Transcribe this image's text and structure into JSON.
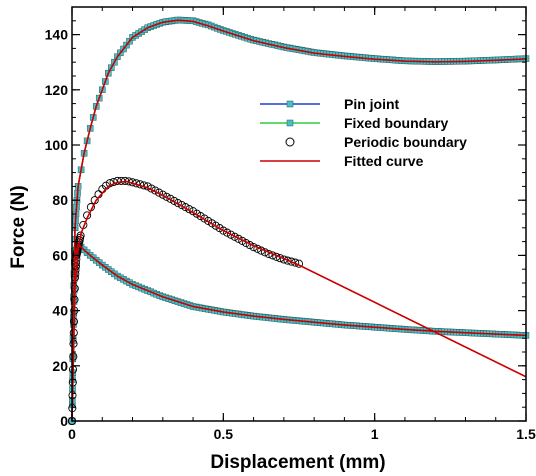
{
  "chart_data": {
    "type": "scatter",
    "xlabel": "Displacement (mm)",
    "ylabel": "Force (N)",
    "xlim": [
      0,
      1.5
    ],
    "ylim": [
      0,
      150
    ],
    "x_ticks": [
      {
        "value": 0,
        "label": "0"
      },
      {
        "value": 0.5,
        "label": "0.5"
      },
      {
        "value": 1,
        "label": "1"
      },
      {
        "value": 1.5,
        "label": "1.5"
      }
    ],
    "y_ticks": [
      {
        "value": 0,
        "label": "0"
      },
      {
        "value": 20,
        "label": "20"
      },
      {
        "value": 40,
        "label": "40"
      },
      {
        "value": 60,
        "label": "60"
      },
      {
        "value": 80,
        "label": "80"
      },
      {
        "value": 100,
        "label": "100"
      },
      {
        "value": 120,
        "label": "120"
      },
      {
        "value": 140,
        "label": "140"
      }
    ],
    "grid": false,
    "legend_position": "center-right",
    "series": [
      {
        "name": "Pin joint",
        "style": "line-square",
        "line_color": "#1f3fcf",
        "marker_fill": "#46c0c8",
        "x": [
          0,
          0.005,
          0.01,
          0.02,
          0.04,
          0.06,
          0.1,
          0.15,
          0.2,
          0.3,
          0.4,
          0.5,
          0.6,
          0.7,
          0.8,
          0.9,
          1.0,
          1.1,
          1.2,
          1.3,
          1.4,
          1.5
        ],
        "y": [
          0,
          35,
          60,
          64,
          62,
          60,
          56.5,
          52.5,
          49.5,
          45,
          41.5,
          39.5,
          38,
          36.8,
          35.8,
          34.8,
          34,
          33.2,
          32.5,
          32,
          31.5,
          31
        ]
      },
      {
        "name": "Fixed boundary",
        "style": "line-square",
        "line_color": "#2ecc40",
        "marker_fill": "#46c0c8",
        "x": [
          0,
          0.005,
          0.01,
          0.02,
          0.04,
          0.06,
          0.08,
          0.1,
          0.12,
          0.15,
          0.2,
          0.25,
          0.3,
          0.35,
          0.4,
          0.45,
          0.5,
          0.6,
          0.7,
          0.8,
          0.9,
          1.0,
          1.1,
          1.2,
          1.3,
          1.4,
          1.5
        ],
        "y": [
          0,
          45,
          70,
          85,
          97,
          106,
          114,
          120,
          126,
          132,
          139,
          142.5,
          144.5,
          145.3,
          145,
          143.5,
          141.5,
          138,
          135.5,
          133.5,
          132.3,
          131.3,
          130.5,
          130.2,
          130.4,
          130.8,
          131.3
        ]
      },
      {
        "name": "Periodic boundary",
        "style": "open-circle",
        "marker_stroke": "#000000",
        "x": [
          0,
          0.005,
          0.01,
          0.015,
          0.02,
          0.03,
          0.04,
          0.06,
          0.08,
          0.1,
          0.12,
          0.15,
          0.18,
          0.2,
          0.25,
          0.3,
          0.35,
          0.4,
          0.45,
          0.5,
          0.55,
          0.6,
          0.65,
          0.7,
          0.75
        ],
        "y": [
          0,
          28,
          52,
          60,
          63,
          68,
          72,
          77,
          81,
          84,
          86,
          87,
          87,
          86.5,
          85,
          82,
          79,
          76,
          72.5,
          69,
          66,
          63,
          60.5,
          58.5,
          57
        ]
      },
      {
        "name": "Fitted curve",
        "style": "line",
        "line_color": "#cc0000",
        "x": [
          0,
          0.01,
          0.02,
          0.03,
          0.05,
          0.08,
          0.12,
          0.15,
          0.18,
          0.25,
          0.3,
          0.4,
          0.5,
          0.6,
          0.75,
          1.0,
          1.25,
          1.5
        ],
        "y": [
          0,
          48,
          62,
          68,
          73.5,
          80,
          85,
          86.5,
          86.8,
          84.5,
          81.8,
          75.5,
          69,
          63.5,
          56.5,
          43,
          29.5,
          16
        ]
      },
      {
        "name": "",
        "style": "line",
        "line_color": "#cc0000",
        "x": [
          0,
          0.01,
          0.02,
          0.04,
          0.06,
          0.08,
          0.1,
          0.12,
          0.15,
          0.2,
          0.25,
          0.3,
          0.35,
          0.4,
          0.45,
          0.5,
          0.6,
          0.7,
          0.8,
          0.9,
          1.0,
          1.1,
          1.2,
          1.3,
          1.4,
          1.5
        ],
        "y": [
          0,
          70,
          85,
          97,
          106,
          114,
          120,
          126,
          132,
          139,
          142.5,
          144.5,
          145.2,
          144.8,
          143.2,
          141.3,
          137.8,
          135.3,
          133.3,
          132.1,
          131.1,
          130.4,
          130.1,
          130.3,
          130.7,
          131.2
        ]
      },
      {
        "name": "",
        "style": "line",
        "line_color": "#cc0000",
        "x": [
          0,
          0.01,
          0.02,
          0.04,
          0.06,
          0.1,
          0.15,
          0.2,
          0.3,
          0.4,
          0.5,
          0.6,
          0.7,
          0.8,
          0.9,
          1.0,
          1.1,
          1.2,
          1.3,
          1.4,
          1.5
        ],
        "y": [
          0,
          60,
          64,
          62,
          60,
          56.5,
          52.5,
          49.5,
          45,
          41.5,
          39.5,
          38,
          36.8,
          35.8,
          34.8,
          34,
          33.2,
          32.5,
          32,
          31.5,
          31
        ]
      }
    ]
  }
}
